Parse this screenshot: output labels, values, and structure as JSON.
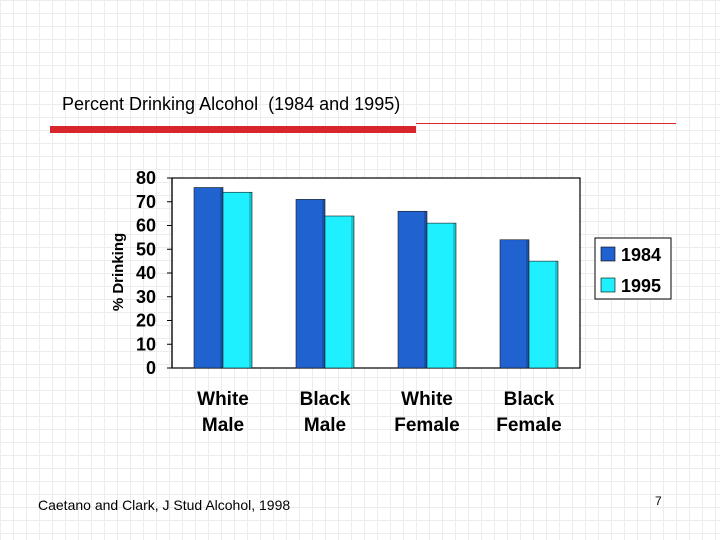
{
  "slide": {
    "title": "Percent Drinking Alcohol  (1984 and 1995)",
    "footer": "Caetano and Clark, J Stud Alcohol, 1998",
    "page_number": "7"
  },
  "colors": {
    "series_1984": "#1f62d0",
    "series_1995": "#1ff0ff",
    "accent_rule": "#d7262c"
  },
  "chart_data": {
    "type": "bar",
    "title": "",
    "ylabel": "% Drinking",
    "xlabel": "",
    "categories": [
      [
        "White",
        "Male"
      ],
      [
        "Black",
        "Male"
      ],
      [
        "White",
        "Female"
      ],
      [
        "Black",
        "Female"
      ]
    ],
    "series": [
      {
        "name": "1984",
        "values": [
          76,
          71,
          66,
          54
        ]
      },
      {
        "name": "1995",
        "values": [
          74,
          64,
          61,
          45
        ]
      }
    ],
    "ylim": [
      0,
      80
    ],
    "yticks": [
      80,
      70,
      60,
      50,
      40,
      30,
      20,
      10,
      0
    ],
    "grid": false,
    "legend_position": "right"
  }
}
